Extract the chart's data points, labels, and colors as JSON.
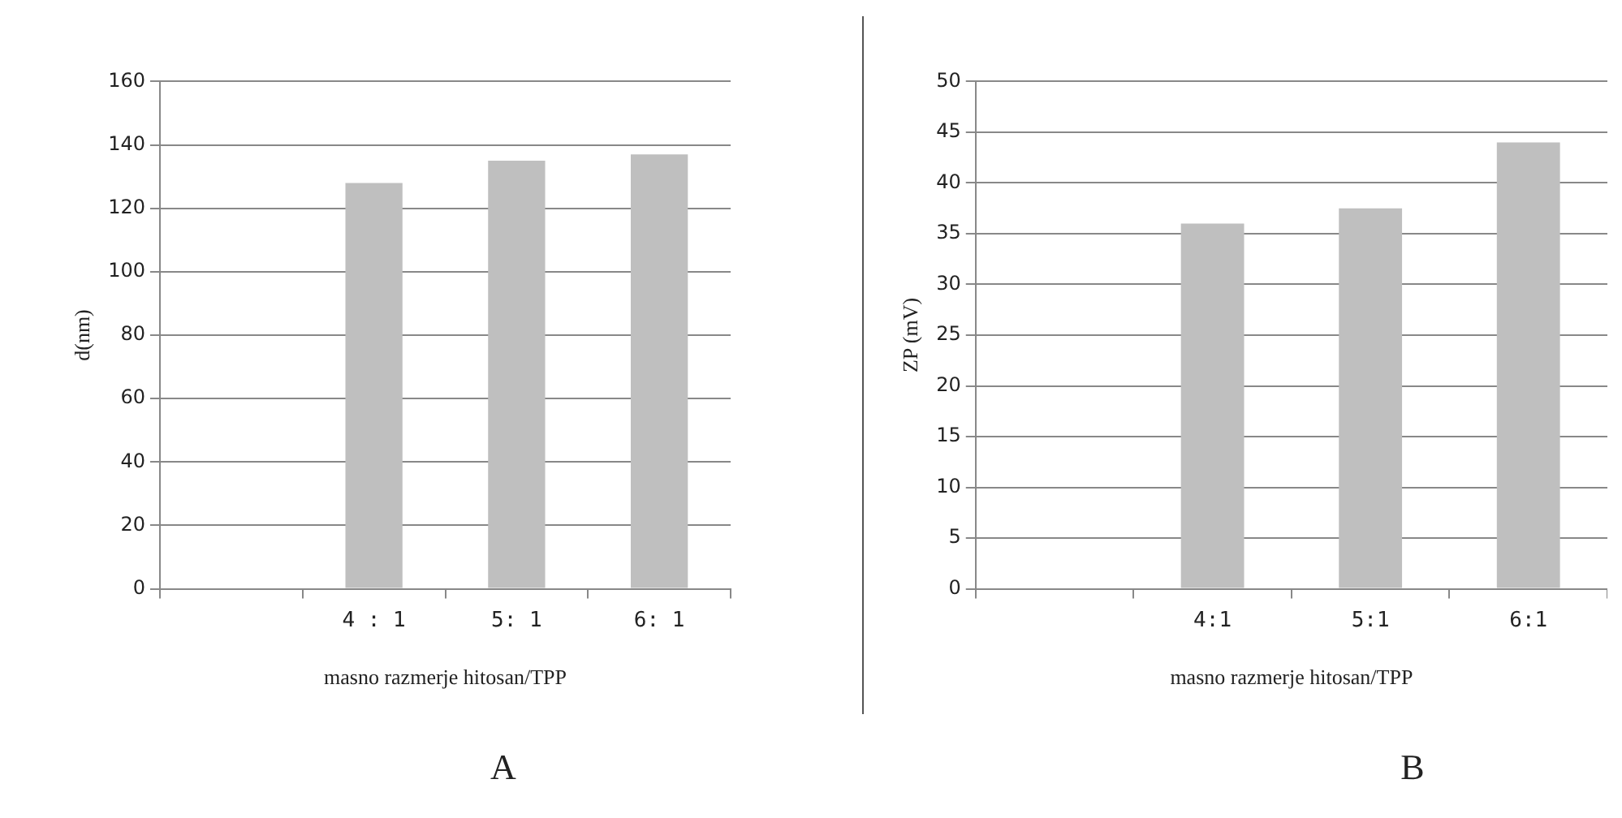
{
  "chart_data": [
    {
      "type": "bar",
      "categories": [
        null,
        "4 : 1",
        "5: 1",
        "6: 1"
      ],
      "values": [
        null,
        128,
        135,
        137
      ],
      "color": "#bfbfbf",
      "ylim": [
        0,
        160
      ],
      "yticks": [
        0,
        20,
        40,
        60,
        80,
        100,
        120,
        140,
        160
      ],
      "grid": "y",
      "xlabel": "masno razmerje hitosan/TPP",
      "ylabel": "d(nm)",
      "annotations": [
        "A"
      ]
    },
    {
      "type": "bar",
      "categories": [
        null,
        "4:1",
        "5:1",
        "6:1"
      ],
      "values": [
        null,
        36,
        37.5,
        44
      ],
      "color": "#bfbfbf",
      "ylim": [
        0,
        50
      ],
      "yticks": [
        0,
        5,
        10,
        15,
        20,
        25,
        30,
        35,
        40,
        45,
        50
      ],
      "grid": "y",
      "xlabel": "masno razmerje hitosan/TPP",
      "ylabel": "ZP (mV)",
      "annotations": [
        "B"
      ]
    }
  ]
}
